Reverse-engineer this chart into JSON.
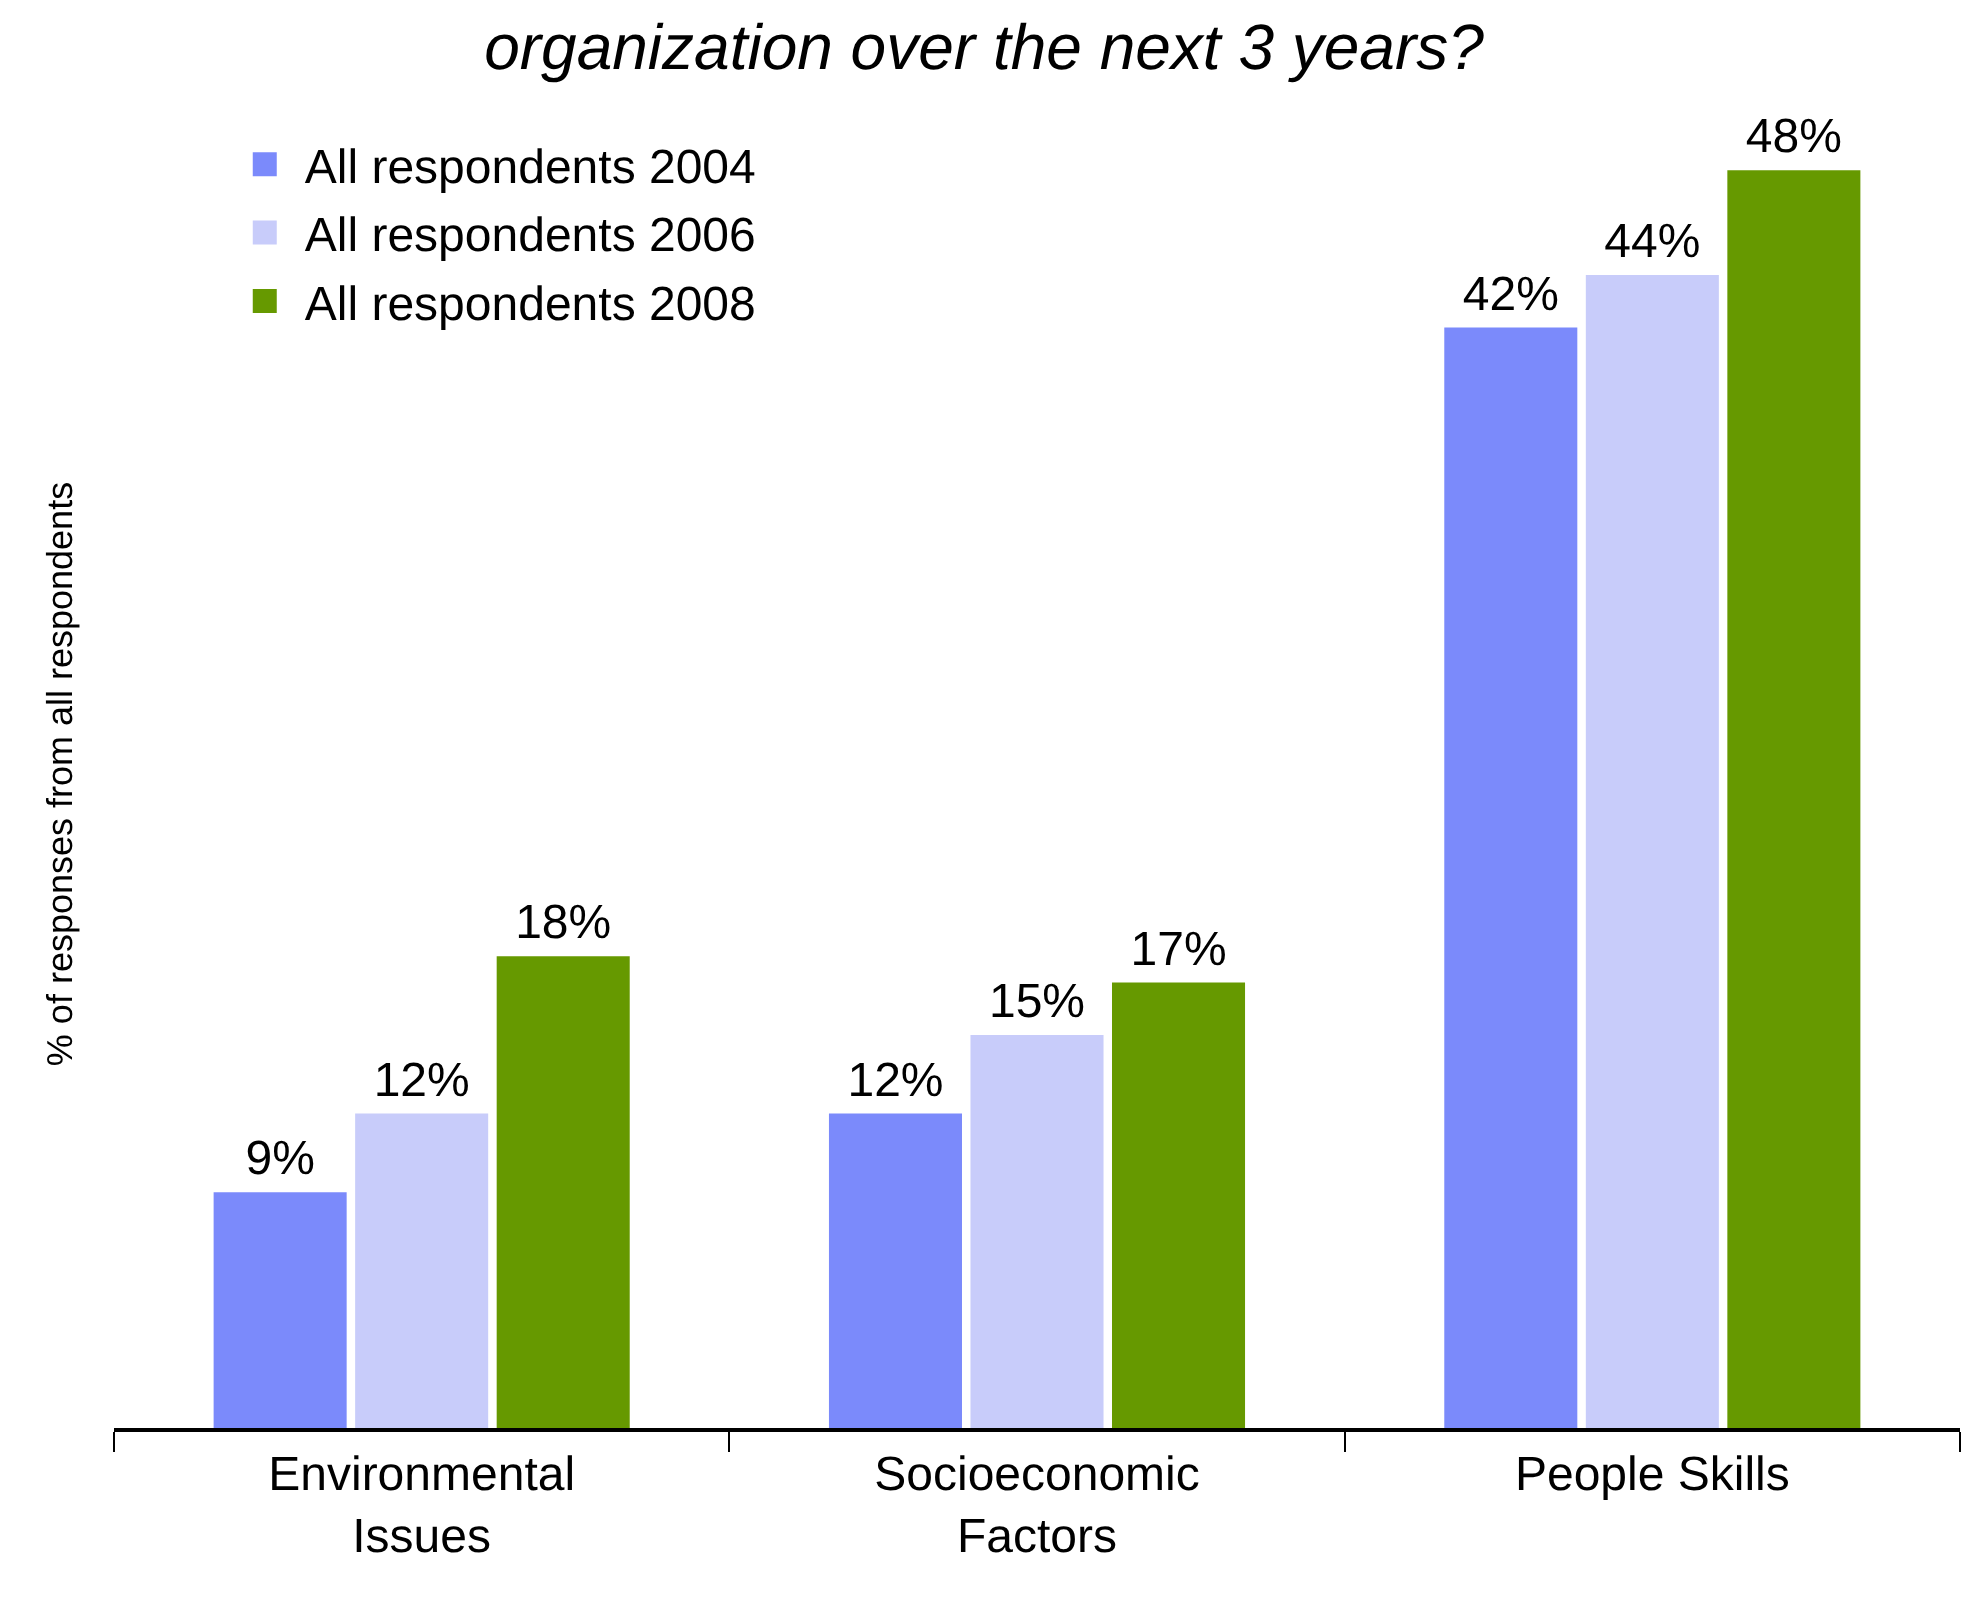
{
  "chart_data": {
    "type": "bar",
    "title": "organization over the next 3 years?",
    "ylabel": "% of responses from all respondents",
    "categories": [
      "Environmental\nIssues",
      "Socioeconomic\nFactors",
      "People Skills"
    ],
    "series": [
      {
        "name": "All respondents 2004",
        "color": "#7b8afb",
        "values": [
          9,
          12,
          42
        ],
        "value_labels": [
          "9%",
          "12%",
          "42%"
        ]
      },
      {
        "name": "All respondents 2006",
        "color": "#c8ccfa",
        "values": [
          12,
          15,
          44
        ],
        "value_labels": [
          "12%",
          "15%",
          "44%"
        ]
      },
      {
        "name": "All respondents 2008",
        "color": "#669900",
        "values": [
          18,
          17,
          48
        ],
        "value_labels": [
          "18%",
          "17%",
          "48%"
        ]
      }
    ],
    "legend": "top left"
  }
}
